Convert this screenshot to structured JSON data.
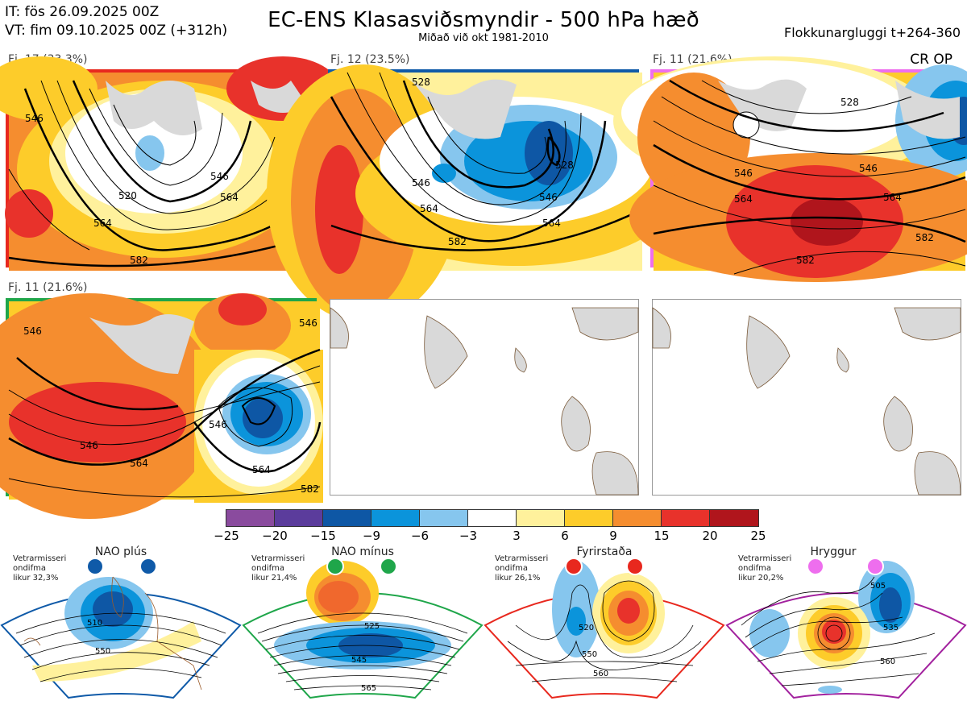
{
  "header": {
    "it_line": "IT: fös 26.09.2025 00Z",
    "vt_line": "VT: fim 09.10.2025 00Z  (+312h)",
    "title": "EC-ENS Klasasviðsmyndir - 500 hPa hæð",
    "subtitle": "Miðað við okt 1981-2010",
    "window": "Flokkunargluggi t+264-360",
    "crop": "CR OP"
  },
  "clusters": [
    {
      "label": "Fj. 17 (33.3%)",
      "border": "#e8281e",
      "contours": [
        "546",
        "520",
        "546",
        "564",
        "582",
        "564"
      ]
    },
    {
      "label": "Fj. 12 (23.5%)",
      "border": "#0f5aa8",
      "contours": [
        "528",
        "546",
        "528",
        "564",
        "546",
        "564",
        "582"
      ]
    },
    {
      "label": "Fj. 11 (21.6%)",
      "border": "#ee6eee",
      "contours": [
        "528",
        "546",
        "546",
        "564",
        "564",
        "582",
        "582"
      ]
    },
    {
      "label": "Fj. 11 (21.6%)",
      "border": "#1fa64a",
      "contours": [
        "546",
        "546",
        "546",
        "546",
        "564",
        "564",
        "582"
      ]
    }
  ],
  "colorbar": {
    "colors": [
      "#8a4b9e",
      "#5b3c9c",
      "#0e57a5",
      "#0b94db",
      "#86c6ee",
      "#ffffff",
      "#fff19c",
      "#fdcc2a",
      "#f58d2f",
      "#e8322b",
      "#b0151c"
    ],
    "ticks": [
      "−25",
      "−20",
      "−15",
      "−9",
      "−6",
      "−3",
      "3",
      "6",
      "9",
      "15",
      "20",
      "25"
    ]
  },
  "regimes": [
    {
      "title": "NAO plús",
      "note1": "Vetrarmisseri",
      "note2": "ondifma",
      "note3": "likur 32,3%",
      "color": "#0f5aa8",
      "c1": "510",
      "c2": "550"
    },
    {
      "title": "NAO mínus",
      "note1": "Vetrarmisseri",
      "note2": "ondifma",
      "note3": "likur 21,4%",
      "color": "#1fa64a",
      "c1": "525",
      "c2": "545",
      "c3": "565"
    },
    {
      "title": "Fyrirstaða",
      "note1": "Vetrarmisseri",
      "note2": "ondifma",
      "note3": "likur 26,1%",
      "color": "#e8281e",
      "c1": "520",
      "c2": "550",
      "c3": "560"
    },
    {
      "title": "Hryggur",
      "note1": "Vetrarmisseri",
      "note2": "ondifma",
      "note3": "likur 20,2%",
      "color": "#a2219e",
      "c1": "505",
      "c2": "535",
      "c3": "560"
    }
  ]
}
